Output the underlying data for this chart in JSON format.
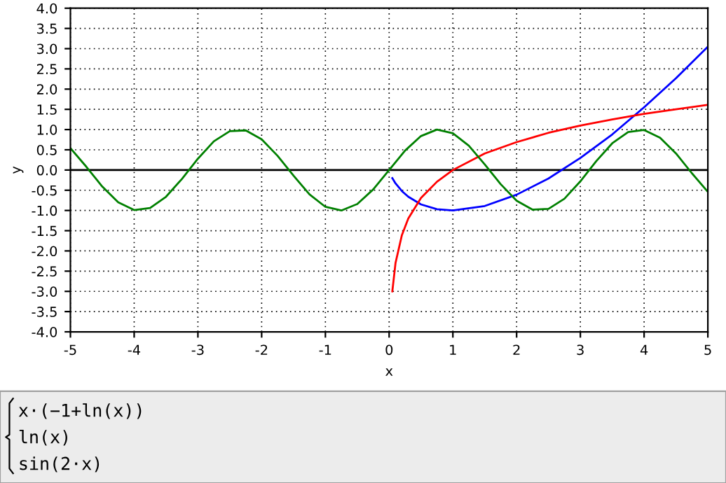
{
  "chart_data": {
    "type": "line",
    "xlabel": "x",
    "ylabel": "y",
    "xlim": [
      -5,
      5
    ],
    "ylim": [
      -4,
      4
    ],
    "xticks": [
      -5,
      -4,
      -3,
      -2,
      -1,
      0,
      1,
      2,
      3,
      4,
      5
    ],
    "yticks": [
      {
        "value": -4,
        "label": "-4.0"
      },
      {
        "value": -3.5,
        "label": "-3.5"
      },
      {
        "value": -3,
        "label": "-3.0"
      },
      {
        "value": -2.5,
        "label": "-2.5"
      },
      {
        "value": -2,
        "label": "-2.0"
      },
      {
        "value": -1.5,
        "label": "-1.5"
      },
      {
        "value": -1,
        "label": "-1.0"
      },
      {
        "value": -0.5,
        "label": "-0.5"
      },
      {
        "value": 0,
        "label": "0.0"
      },
      {
        "value": 0.5,
        "label": "0.5"
      },
      {
        "value": 1,
        "label": "1.0"
      },
      {
        "value": 1.5,
        "label": "1.5"
      },
      {
        "value": 2,
        "label": "2.0"
      },
      {
        "value": 2.5,
        "label": "2.5"
      },
      {
        "value": 3,
        "label": "3.0"
      },
      {
        "value": 3.5,
        "label": "3.5"
      },
      {
        "value": 4,
        "label": "4.0"
      }
    ],
    "grid": true,
    "legend": false,
    "marker": "none",
    "line_style": "solid",
    "ref_lines": [
      {
        "axis": "y",
        "value": 0,
        "color": "#000000"
      }
    ],
    "series": [
      {
        "color": "#0000ff",
        "x": [
          0.05,
          0.1,
          0.2,
          0.3,
          0.5,
          0.75,
          1,
          1.5,
          2,
          2.5,
          3,
          3.5,
          4,
          4.5,
          5
        ],
        "values": [
          -0.2,
          -0.33,
          -0.52,
          -0.66,
          -0.85,
          -0.97,
          -1.0,
          -0.89,
          -0.61,
          -0.21,
          0.3,
          0.88,
          1.55,
          2.27,
          3.05
        ]
      },
      {
        "color": "#ff0000",
        "x": [
          0.05,
          0.1,
          0.2,
          0.3,
          0.5,
          0.75,
          1,
          1.5,
          2,
          2.5,
          3,
          3.5,
          4,
          4.5,
          5
        ],
        "values": [
          -3.0,
          -2.3,
          -1.61,
          -1.2,
          -0.69,
          -0.29,
          0.0,
          0.41,
          0.69,
          0.92,
          1.1,
          1.25,
          1.39,
          1.5,
          1.61
        ]
      },
      {
        "color": "#008000",
        "x": [
          -5,
          -4.75,
          -4.5,
          -4.25,
          -4,
          -3.75,
          -3.5,
          -3.25,
          -3,
          -2.75,
          -2.5,
          -2.25,
          -2,
          -1.75,
          -1.5,
          -1.25,
          -1,
          -0.75,
          -0.5,
          -0.25,
          0,
          0.25,
          0.5,
          0.75,
          1,
          1.25,
          1.5,
          1.75,
          2,
          2.25,
          2.5,
          2.75,
          3,
          3.25,
          3.5,
          3.75,
          4,
          4.25,
          4.5,
          4.75,
          5
        ],
        "values": [
          0.54,
          0.08,
          -0.41,
          -0.8,
          -0.99,
          -0.94,
          -0.66,
          -0.22,
          0.28,
          0.71,
          0.96,
          0.98,
          0.76,
          0.35,
          -0.14,
          -0.6,
          -0.91,
          -1.0,
          -0.84,
          -0.48,
          0.0,
          0.48,
          0.84,
          1.0,
          0.91,
          0.6,
          0.14,
          -0.35,
          -0.76,
          -0.98,
          -0.96,
          -0.71,
          -0.28,
          0.22,
          0.66,
          0.94,
          0.99,
          0.8,
          0.41,
          -0.08,
          -0.54
        ]
      }
    ],
    "annotations": [
      "x·(−1+ln(x))",
      "ln(x)",
      "sin(2·x)"
    ]
  }
}
